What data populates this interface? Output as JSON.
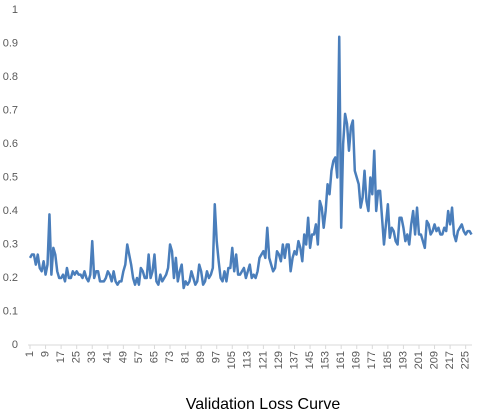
{
  "chart_data": {
    "type": "line",
    "title": "Validation Loss Curve",
    "color": "#4a7ebb",
    "x": [
      1,
      2,
      3,
      4,
      5,
      6,
      7,
      8,
      9,
      10,
      11,
      12,
      13,
      14,
      15,
      16,
      17,
      18,
      19,
      20,
      21,
      22,
      23,
      24,
      25,
      26,
      27,
      28,
      29,
      30,
      31,
      32,
      33,
      34,
      35,
      36,
      37,
      38,
      39,
      40,
      41,
      42,
      43,
      44,
      45,
      46,
      47,
      48,
      49,
      50,
      51,
      52,
      53,
      54,
      55,
      56,
      57,
      58,
      59,
      60,
      61,
      62,
      63,
      64,
      65,
      66,
      67,
      68,
      69,
      70,
      71,
      72,
      73,
      74,
      75,
      76,
      77,
      78,
      79,
      80,
      81,
      82,
      83,
      84,
      85,
      86,
      87,
      88,
      89,
      90,
      91,
      92,
      93,
      94,
      95,
      96,
      97,
      98,
      99,
      100,
      101,
      102,
      103,
      104,
      105,
      106,
      107,
      108,
      109,
      110,
      111,
      112,
      113,
      114,
      115,
      116,
      117,
      118,
      119,
      120,
      121,
      122,
      123,
      124,
      125,
      126,
      127,
      128,
      129,
      130,
      131,
      132,
      133,
      134,
      135,
      136,
      137,
      138,
      139,
      140,
      141,
      142,
      143,
      144,
      145,
      146,
      147,
      148,
      149,
      150,
      151,
      152,
      153,
      154,
      155,
      156,
      157,
      158,
      159,
      160,
      161,
      162,
      163,
      164,
      165,
      166,
      167,
      168,
      169,
      170,
      171,
      172,
      173,
      174,
      175,
      176,
      177,
      178,
      179,
      180,
      181,
      182,
      183,
      184,
      185,
      186,
      187,
      188,
      189,
      190,
      191,
      192,
      193,
      194,
      195,
      196,
      197,
      198,
      199,
      200,
      201,
      202,
      203,
      204,
      205,
      206,
      207,
      208,
      209,
      210,
      211,
      212,
      213,
      214,
      215,
      216,
      217,
      218,
      219,
      220,
      221,
      222,
      223,
      224,
      225,
      226,
      227,
      228
    ],
    "values": [
      0.26,
      0.27,
      0.27,
      0.24,
      0.27,
      0.23,
      0.22,
      0.25,
      0.21,
      0.24,
      0.39,
      0.21,
      0.29,
      0.27,
      0.22,
      0.2,
      0.2,
      0.21,
      0.19,
      0.23,
      0.2,
      0.2,
      0.22,
      0.21,
      0.22,
      0.21,
      0.21,
      0.2,
      0.22,
      0.2,
      0.19,
      0.21,
      0.31,
      0.2,
      0.22,
      0.22,
      0.19,
      0.19,
      0.19,
      0.2,
      0.22,
      0.21,
      0.19,
      0.22,
      0.19,
      0.18,
      0.19,
      0.19,
      0.22,
      0.24,
      0.3,
      0.27,
      0.24,
      0.2,
      0.18,
      0.2,
      0.18,
      0.23,
      0.22,
      0.2,
      0.2,
      0.27,
      0.2,
      0.22,
      0.27,
      0.19,
      0.18,
      0.21,
      0.19,
      0.2,
      0.21,
      0.23,
      0.3,
      0.28,
      0.2,
      0.26,
      0.19,
      0.22,
      0.24,
      0.17,
      0.19,
      0.18,
      0.19,
      0.22,
      0.2,
      0.18,
      0.19,
      0.24,
      0.22,
      0.18,
      0.19,
      0.22,
      0.2,
      0.21,
      0.23,
      0.42,
      0.31,
      0.25,
      0.2,
      0.19,
      0.22,
      0.19,
      0.23,
      0.23,
      0.29,
      0.22,
      0.27,
      0.21,
      0.21,
      0.22,
      0.23,
      0.2,
      0.22,
      0.24,
      0.2,
      0.21,
      0.2,
      0.22,
      0.26,
      0.27,
      0.28,
      0.26,
      0.35,
      0.26,
      0.24,
      0.22,
      0.23,
      0.28,
      0.27,
      0.25,
      0.3,
      0.26,
      0.3,
      0.3,
      0.22,
      0.26,
      0.28,
      0.27,
      0.31,
      0.29,
      0.25,
      0.33,
      0.3,
      0.38,
      0.29,
      0.33,
      0.33,
      0.36,
      0.3,
      0.43,
      0.41,
      0.35,
      0.4,
      0.48,
      0.45,
      0.52,
      0.55,
      0.56,
      0.5,
      0.92,
      0.35,
      0.6,
      0.69,
      0.66,
      0.58,
      0.65,
      0.67,
      0.52,
      0.5,
      0.48,
      0.41,
      0.44,
      0.52,
      0.43,
      0.4,
      0.5,
      0.45,
      0.58,
      0.4,
      0.46,
      0.46,
      0.38,
      0.3,
      0.36,
      0.42,
      0.32,
      0.35,
      0.34,
      0.31,
      0.3,
      0.38,
      0.38,
      0.35,
      0.31,
      0.33,
      0.3,
      0.36,
      0.4,
      0.33,
      0.41,
      0.33,
      0.33,
      0.31,
      0.29,
      0.37,
      0.36,
      0.33,
      0.34,
      0.36,
      0.34,
      0.35,
      0.33,
      0.33,
      0.35,
      0.34,
      0.4,
      0.36,
      0.41,
      0.33,
      0.31,
      0.34,
      0.35,
      0.36,
      0.34,
      0.33,
      0.34,
      0.34,
      0.33
    ],
    "xlim": [
      1,
      228
    ],
    "xticks": [
      1,
      9,
      17,
      25,
      33,
      41,
      49,
      57,
      65,
      73,
      81,
      89,
      97,
      105,
      113,
      121,
      129,
      137,
      145,
      153,
      161,
      169,
      177,
      185,
      193,
      201,
      209,
      217,
      225
    ],
    "ylim": [
      0,
      1
    ],
    "yticks": [
      0,
      0.1,
      0.2,
      0.3,
      0.4,
      0.5,
      0.6,
      0.7,
      0.8,
      0.9,
      1
    ],
    "grid": false
  }
}
